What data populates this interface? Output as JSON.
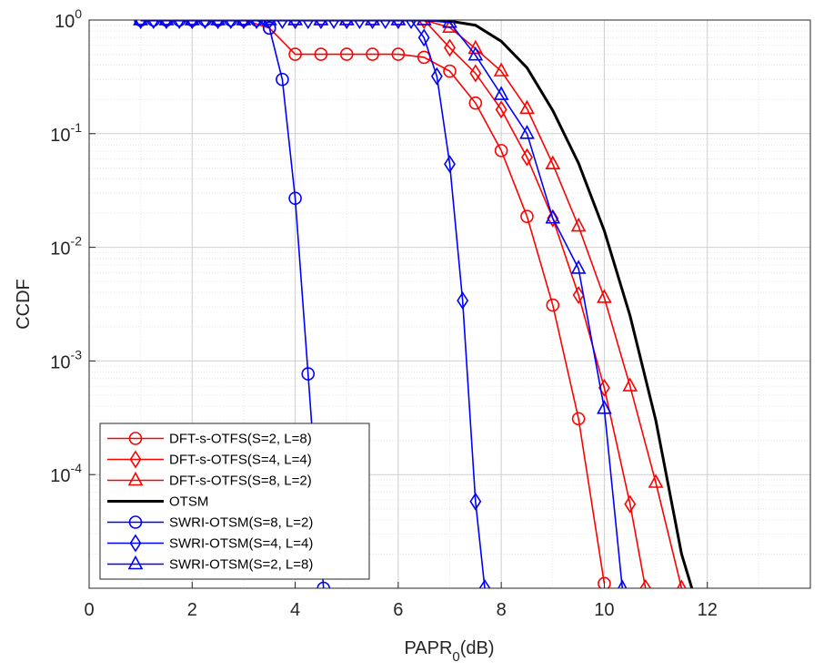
{
  "chart_data": {
    "type": "line",
    "log_y": true,
    "grid": true,
    "minor_grid": true,
    "legend": "lower left",
    "xlabel": "PAPR",
    "xlabel_sub": "0",
    "xlabel_suffix": "(dB)",
    "ylabel": "CCDF",
    "xlim": [
      0,
      14
    ],
    "xticks": [
      0,
      2,
      4,
      6,
      8,
      10,
      12
    ],
    "ylim": [
      1e-05,
      1
    ],
    "yticks": [
      {
        "value": 1,
        "label": "10",
        "exp": "0"
      },
      {
        "value": 0.1,
        "label": "10",
        "exp": "-1"
      },
      {
        "value": 0.01,
        "label": "10",
        "exp": "-2"
      },
      {
        "value": 0.001,
        "label": "10",
        "exp": "-3"
      },
      {
        "value": 0.0001,
        "label": "10",
        "exp": "-4"
      }
    ],
    "series": [
      {
        "name": "DFT-s-OTFS(S=2, L=8)",
        "color": "#ff0000",
        "marker": "o",
        "x": [
          1,
          1.5,
          2,
          2.5,
          3,
          3.5,
          4,
          4.5,
          5,
          5.5,
          6,
          6.5,
          7,
          7.5,
          8,
          8.5,
          9,
          9.5,
          10
        ],
        "values": [
          1,
          1,
          1,
          1,
          1,
          0.85,
          0.5,
          0.5,
          0.5,
          0.5,
          0.5,
          0.47,
          0.355,
          0.186,
          0.071,
          0.0187,
          0.0031,
          0.00031,
          1.1e-05
        ]
      },
      {
        "name": "DFT-s-OTFS(S=4, L=4)",
        "color": "#ff0000",
        "marker": "d",
        "x": [
          1,
          1.5,
          2,
          2.5,
          3,
          3.5,
          4,
          4.5,
          5,
          5.5,
          6,
          6.5,
          7,
          7.5,
          8,
          8.5,
          9,
          9.5,
          10,
          10.5,
          10.8
        ],
        "values": [
          1,
          1,
          1,
          1,
          1,
          1,
          1,
          1,
          1,
          1,
          1,
          1,
          0.57,
          0.34,
          0.163,
          0.062,
          0.018,
          0.0038,
          0.00058,
          5.5e-05,
          1e-05
        ]
      },
      {
        "name": "DFT-s-OTFS(S=8, L=2)",
        "color": "#ff0000",
        "marker": "^",
        "x": [
          1,
          1.5,
          2,
          2.5,
          3,
          3.5,
          4,
          4.5,
          5,
          5.5,
          6,
          6.5,
          7,
          7.5,
          8,
          8.5,
          9,
          9.5,
          10,
          10.5,
          11,
          11.5
        ],
        "values": [
          1,
          1,
          1,
          1,
          1,
          1,
          1,
          1,
          1,
          1,
          1,
          1,
          0.86,
          0.56,
          0.355,
          0.166,
          0.054,
          0.0153,
          0.0036,
          0.0006,
          8.5e-05,
          1e-05
        ]
      },
      {
        "name": "OTSM",
        "color": "#000000",
        "marker": "none",
        "x": [
          1,
          2,
          3,
          4,
          5,
          6,
          6.5,
          7,
          7.5,
          8,
          8.5,
          9,
          9.5,
          10,
          10.5,
          11,
          11.5,
          11.7
        ],
        "values": [
          1,
          1,
          1,
          1,
          1,
          1,
          1,
          0.98,
          0.9,
          0.65,
          0.38,
          0.16,
          0.055,
          0.014,
          0.0025,
          0.0003,
          2e-05,
          1e-05
        ]
      },
      {
        "name": "SWRI-OTSM(S=8, L=2)",
        "color": "#0000ff",
        "marker": "o",
        "x": [
          1,
          1.25,
          1.5,
          1.75,
          2,
          2.25,
          2.5,
          2.75,
          3,
          3.25,
          3.5,
          3.75,
          4,
          4.25,
          4.55
        ],
        "values": [
          1,
          1,
          1,
          1,
          1,
          1,
          1,
          1,
          1,
          1,
          0.85,
          0.3,
          0.027,
          0.00077,
          1e-05
        ]
      },
      {
        "name": "SWRI-OTSM(S=4, L=4)",
        "color": "#0000ff",
        "marker": "d",
        "x": [
          1,
          1.25,
          1.5,
          1.75,
          2,
          2.25,
          2.5,
          2.75,
          3,
          3.25,
          3.5,
          3.75,
          4,
          4.25,
          4.5,
          4.75,
          5,
          5.25,
          5.5,
          5.75,
          6,
          6.25,
          6.5,
          6.75,
          7,
          7.25,
          7.5,
          7.68
        ],
        "values": [
          1,
          1,
          1,
          1,
          1,
          1,
          1,
          1,
          1,
          1,
          1,
          1,
          1,
          1,
          1,
          1,
          1,
          1,
          1,
          1,
          1,
          1,
          0.7,
          0.32,
          0.054,
          0.0034,
          5.8e-05,
          1e-05
        ]
      },
      {
        "name": "SWRI-OTSM(S=2, L=8)",
        "color": "#0000ff",
        "marker": "^",
        "x": [
          1,
          1.5,
          2,
          2.5,
          3,
          3.5,
          4,
          4.5,
          5,
          5.5,
          6,
          6.5,
          7,
          7.5,
          8,
          8.5,
          9,
          9.5,
          10,
          10.35
        ],
        "values": [
          1,
          1,
          1,
          1,
          1,
          1,
          1,
          1,
          1,
          1,
          1,
          1,
          0.95,
          0.49,
          0.22,
          0.1,
          0.018,
          0.0065,
          0.00038,
          1e-05
        ]
      }
    ]
  }
}
